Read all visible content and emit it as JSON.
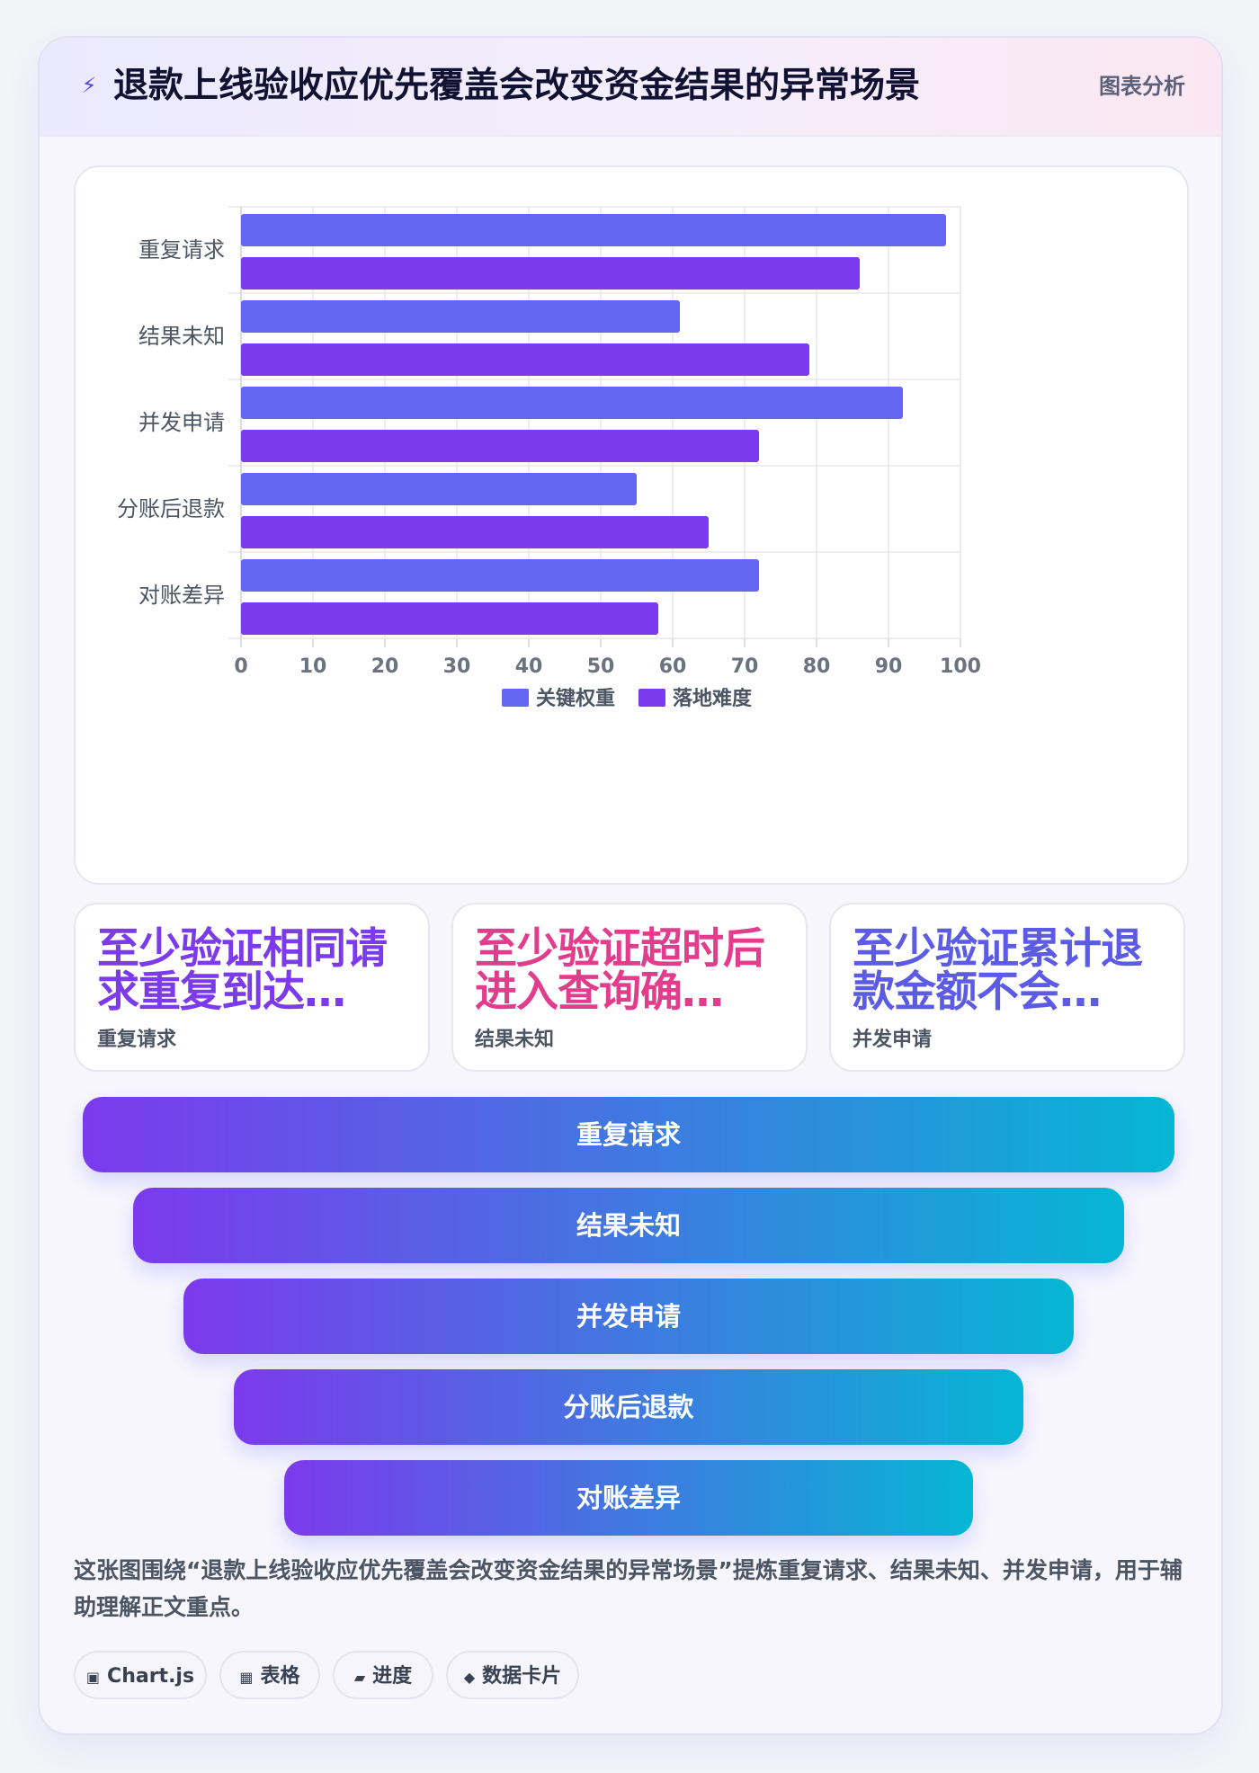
{
  "header": {
    "icon": "lightning-icon",
    "title": "退款上线验收应优先覆盖会改变资金结果的异常场景",
    "tag": "图表分析"
  },
  "chart_data": {
    "type": "bar",
    "orientation": "horizontal",
    "categories": [
      "重复请求",
      "结果未知",
      "并发申请",
      "分账后退款",
      "对账差异"
    ],
    "series": [
      {
        "name": "关键权重",
        "color": "#6366f1",
        "values": [
          98,
          61,
          92,
          55,
          72
        ]
      },
      {
        "name": "落地难度",
        "color": "#7c3aed",
        "values": [
          86,
          79,
          72,
          65,
          58
        ]
      }
    ],
    "xlim": [
      0,
      100
    ],
    "xticks": [
      0,
      10,
      20,
      30,
      40,
      50,
      60,
      70,
      80,
      90,
      100
    ],
    "grid": true,
    "legend": "bottom"
  },
  "kpis": [
    {
      "value": "至少验证相同请求重复到达…",
      "label": "重复请求",
      "color": "#7c3aed"
    },
    {
      "value": "至少验证超时后进入查询确…",
      "label": "结果未知",
      "color": "#e23c8c"
    },
    {
      "value": "至少验证累计退款金额不会…",
      "label": "并发申请",
      "color": "#5b5be6"
    }
  ],
  "funnel": {
    "stages": [
      "重复请求",
      "结果未知",
      "并发申请",
      "分账后退款",
      "对账差异"
    ]
  },
  "description": "这张图围绕“退款上线验收应优先覆盖会改变资金结果的异常场景”提炼重复请求、结果未知、并发申请，用于辅助理解正文重点。",
  "tags": [
    {
      "icon": "chart-icon",
      "glyph": "▣",
      "label": "Chart.js"
    },
    {
      "icon": "table-icon",
      "glyph": "▦",
      "label": "表格"
    },
    {
      "icon": "progress-icon",
      "glyph": "▰",
      "label": "进度"
    },
    {
      "icon": "data-card-icon",
      "glyph": "◆",
      "label": "数据卡片"
    }
  ]
}
